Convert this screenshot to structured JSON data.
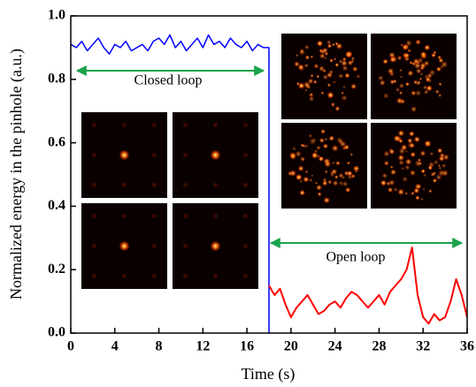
{
  "chart_data": {
    "type": "line",
    "x_label": "Time (s)",
    "y_label": "Normalized energy in the pinhole (a.u.)",
    "annotations": [
      "Closed loop",
      "Open loop"
    ],
    "xlim": [
      0,
      36
    ],
    "xticks": [
      0,
      4,
      8,
      12,
      16,
      20,
      24,
      28,
      32,
      36
    ],
    "ylim": [
      0,
      1
    ],
    "yticks": [
      {
        "value": 0,
        "label": "0.0"
      },
      0.2,
      0.4,
      0.6,
      0.8,
      {
        "value": 1,
        "label": "1.0"
      }
    ],
    "series": [
      {
        "color": "#0000ff",
        "x": [
          0,
          0.5,
          1,
          1.5,
          2,
          2.5,
          3,
          3.5,
          4,
          4.5,
          5,
          5.5,
          6,
          6.5,
          7,
          7.5,
          8,
          8.5,
          9,
          9.5,
          10,
          10.5,
          11,
          11.5,
          12,
          12.5,
          13,
          13.5,
          14,
          14.5,
          15,
          15.5,
          16,
          16.5,
          17,
          17.5,
          18,
          18
        ],
        "values": [
          0.91,
          0.9,
          0.92,
          0.89,
          0.91,
          0.93,
          0.9,
          0.88,
          0.91,
          0.9,
          0.92,
          0.89,
          0.9,
          0.91,
          0.89,
          0.92,
          0.93,
          0.91,
          0.94,
          0.9,
          0.92,
          0.89,
          0.91,
          0.93,
          0.9,
          0.94,
          0.91,
          0.92,
          0.9,
          0.93,
          0.91,
          0.9,
          0.92,
          0.89,
          0.91,
          0.9,
          0.9,
          0.0
        ]
      },
      {
        "color": "#ff0000",
        "x": [
          18,
          18.5,
          19,
          19.5,
          20,
          20.5,
          21,
          21.5,
          22,
          22.5,
          23,
          23.5,
          24,
          24.5,
          25,
          25.5,
          26,
          26.5,
          27,
          27.5,
          28,
          28.5,
          29,
          29.5,
          30,
          30.5,
          31,
          31.5,
          32,
          32.5,
          33,
          33.5,
          34,
          34.5,
          35,
          35.5,
          36
        ],
        "values": [
          0.15,
          0.12,
          0.14,
          0.09,
          0.05,
          0.08,
          0.1,
          0.12,
          0.09,
          0.06,
          0.07,
          0.09,
          0.1,
          0.08,
          0.11,
          0.13,
          0.12,
          0.1,
          0.08,
          0.1,
          0.12,
          0.09,
          0.13,
          0.15,
          0.17,
          0.2,
          0.27,
          0.12,
          0.05,
          0.03,
          0.06,
          0.04,
          0.05,
          0.1,
          0.17,
          0.12,
          0.05
        ]
      }
    ]
  }
}
